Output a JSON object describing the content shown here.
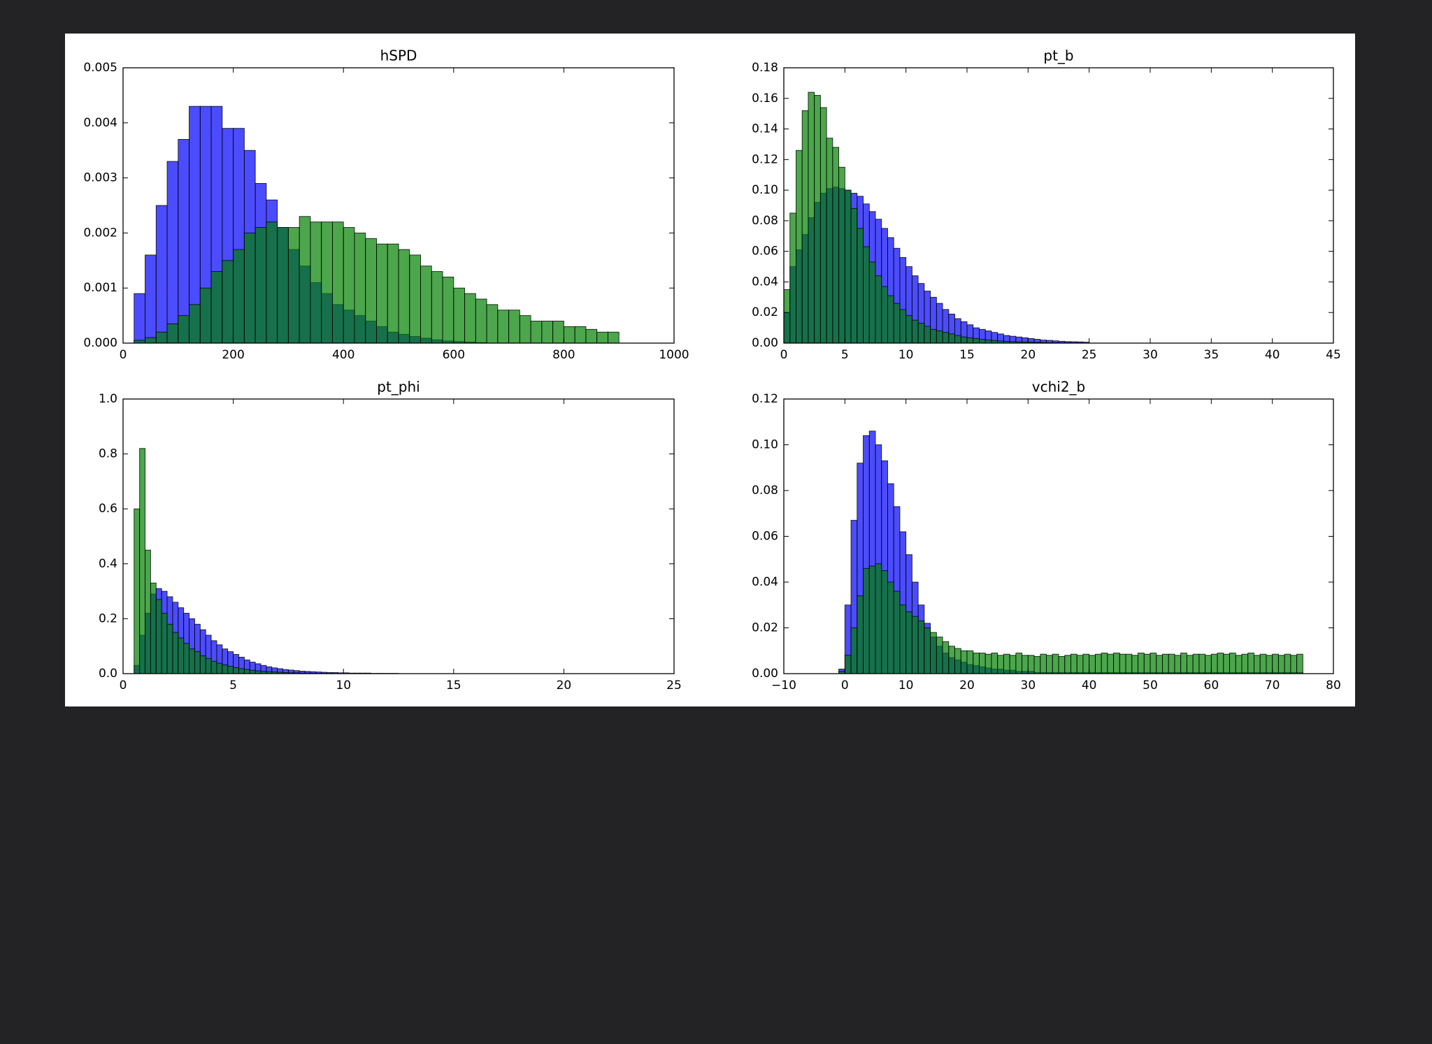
{
  "chart_data": [
    {
      "type": "histogram",
      "title": "hSPD",
      "bins": [
        20,
        40,
        60,
        80,
        100,
        120,
        140,
        160,
        180,
        200,
        220,
        240,
        260,
        280,
        300,
        320,
        340,
        360,
        380,
        400,
        420,
        440,
        460,
        480,
        500,
        520,
        540,
        560,
        580,
        600,
        620,
        640,
        660,
        680,
        700,
        720,
        740,
        760,
        780,
        800,
        820,
        840,
        860,
        880,
        900,
        920
      ],
      "series": [
        {
          "color": "#0000ff",
          "values": [
            0.0009,
            0.0016,
            0.0025,
            0.0033,
            0.0037,
            0.0043,
            0.0043,
            0.0043,
            0.0039,
            0.0039,
            0.0035,
            0.0029,
            0.0026,
            0.0021,
            0.0017,
            0.0014,
            0.0011,
            0.0009,
            0.0007,
            0.0006,
            0.0005,
            0.0004,
            0.0003,
            0.0002,
            0.00016,
            0.00012,
            9e-05,
            6e-05,
            4e-05,
            3e-05,
            2e-05,
            1e-05,
            0,
            0,
            0,
            0,
            0,
            0,
            0,
            0,
            0,
            0,
            0,
            0,
            0
          ]
        },
        {
          "color": "#008000",
          "values": [
            5e-05,
            0.0001,
            0.0002,
            0.00035,
            0.0005,
            0.0007,
            0.001,
            0.0013,
            0.0015,
            0.0017,
            0.002,
            0.0021,
            0.0022,
            0.0021,
            0.0021,
            0.0023,
            0.0022,
            0.0022,
            0.0022,
            0.0021,
            0.002,
            0.0019,
            0.0018,
            0.0018,
            0.0017,
            0.0016,
            0.0014,
            0.0013,
            0.0012,
            0.001,
            0.0009,
            0.0008,
            0.0007,
            0.0006,
            0.0006,
            0.0005,
            0.0004,
            0.0004,
            0.0004,
            0.0003,
            0.0003,
            0.00025,
            0.0002,
            0.0002,
            0
          ]
        }
      ],
      "alpha": 0.7,
      "xlim": [
        0,
        1000
      ],
      "xticks": [
        0,
        200,
        400,
        600,
        800,
        1000
      ],
      "ylim": [
        0,
        0.005
      ],
      "yticks": [
        {
          "value": 0,
          "label": "0.000"
        },
        0.001,
        0.002,
        0.003,
        0.004,
        0.005
      ]
    },
    {
      "type": "histogram",
      "title": "pt_b",
      "bins": [
        0,
        0.5,
        1,
        1.5,
        2,
        2.5,
        3,
        3.5,
        4,
        4.5,
        5,
        5.5,
        6,
        6.5,
        7,
        7.5,
        8,
        8.5,
        9,
        9.5,
        10,
        10.5,
        11,
        11.5,
        12,
        12.5,
        13,
        13.5,
        14,
        14.5,
        15,
        15.5,
        16,
        16.5,
        17,
        17.5,
        18,
        18.5,
        19,
        19.5,
        20,
        20.5,
        21,
        21.5,
        22,
        22.5,
        23,
        23.5,
        24,
        24.5,
        25
      ],
      "series": [
        {
          "color": "#0000ff",
          "values": [
            0.02,
            0.05,
            0.061,
            0.071,
            0.082,
            0.092,
            0.098,
            0.101,
            0.102,
            0.101,
            0.1,
            0.098,
            0.096,
            0.091,
            0.086,
            0.081,
            0.075,
            0.069,
            0.062,
            0.056,
            0.05,
            0.044,
            0.039,
            0.034,
            0.03,
            0.026,
            0.022,
            0.019,
            0.016,
            0.014,
            0.012,
            0.01,
            0.009,
            0.008,
            0.007,
            0.006,
            0.005,
            0.0045,
            0.004,
            0.0035,
            0.003,
            0.0025,
            0.002,
            0.0018,
            0.0015,
            0.0012,
            0.001,
            0.0009,
            0.0008,
            0.0006
          ]
        },
        {
          "color": "#008000",
          "values": [
            0.035,
            0.085,
            0.126,
            0.152,
            0.164,
            0.162,
            0.154,
            0.134,
            0.128,
            0.115,
            0.1,
            0.088,
            0.075,
            0.063,
            0.053,
            0.044,
            0.037,
            0.031,
            0.026,
            0.022,
            0.018,
            0.015,
            0.013,
            0.011,
            0.009,
            0.008,
            0.007,
            0.006,
            0.005,
            0.004,
            0.0035,
            0.003,
            0.0025,
            0.002,
            0.0017,
            0.0014,
            0.0012,
            0.001,
            0.0008,
            0.0007,
            0.0006,
            0.0005,
            0.0004,
            0.0003,
            0.0003,
            0.0002,
            0.0002,
            0.0001,
            0.0001,
            0.0001
          ]
        }
      ],
      "alpha": 0.7,
      "xlim": [
        0,
        45
      ],
      "xticks": [
        0,
        5,
        10,
        15,
        20,
        25,
        30,
        35,
        40,
        45
      ],
      "ylim": [
        0,
        0.18
      ],
      "yticks": [
        {
          "value": 0,
          "label": "0.00"
        },
        0.02,
        0.04,
        0.06,
        0.08,
        {
          "value": 0.1,
          "label": "0.10"
        },
        0.12,
        0.14,
        0.16,
        0.18
      ]
    },
    {
      "type": "histogram",
      "title": "pt_phi",
      "bins": [
        0.5,
        0.75,
        1,
        1.25,
        1.5,
        1.75,
        2,
        2.25,
        2.5,
        2.75,
        3,
        3.25,
        3.5,
        3.75,
        4,
        4.25,
        4.5,
        4.75,
        5,
        5.25,
        5.5,
        5.75,
        6,
        6.25,
        6.5,
        6.75,
        7,
        7.25,
        7.5,
        7.75,
        8,
        8.25,
        8.5,
        8.75,
        9,
        9.25,
        9.5,
        9.75,
        10,
        10.25,
        10.5,
        10.75,
        11,
        11.25,
        11.5,
        11.75,
        12,
        12.25,
        12.5
      ],
      "series": [
        {
          "color": "#0000ff",
          "values": [
            0.03,
            0.14,
            0.22,
            0.29,
            0.31,
            0.3,
            0.28,
            0.26,
            0.24,
            0.22,
            0.2,
            0.18,
            0.16,
            0.14,
            0.12,
            0.105,
            0.09,
            0.08,
            0.07,
            0.06,
            0.05,
            0.042,
            0.036,
            0.03,
            0.025,
            0.021,
            0.018,
            0.015,
            0.013,
            0.011,
            0.009,
            0.008,
            0.007,
            0.006,
            0.005,
            0.004,
            0.004,
            0.003,
            0.003,
            0.002,
            0.002,
            0.002,
            0.002,
            0.001,
            0.001,
            0.001,
            0.001,
            0.001
          ]
        },
        {
          "color": "#008000",
          "values": [
            0.6,
            0.82,
            0.45,
            0.33,
            0.27,
            0.22,
            0.18,
            0.15,
            0.13,
            0.11,
            0.09,
            0.08,
            0.065,
            0.055,
            0.045,
            0.038,
            0.032,
            0.027,
            0.022,
            0.018,
            0.015,
            0.012,
            0.01,
            0.008,
            0.007,
            0.006,
            0.005,
            0.004,
            0.003,
            0.003,
            0.002,
            0.002,
            0.0015,
            0.001,
            0.001,
            0.001,
            0,
            0,
            0,
            0,
            0,
            0,
            0,
            0,
            0,
            0,
            0,
            0
          ]
        }
      ],
      "alpha": 0.7,
      "xlim": [
        0,
        25
      ],
      "xticks": [
        0,
        5,
        10,
        15,
        20,
        25
      ],
      "ylim": [
        0,
        1
      ],
      "yticks": [
        {
          "value": 0,
          "label": "0.0"
        },
        0.2,
        0.4,
        0.6,
        0.8,
        {
          "value": 1,
          "label": "1.0"
        }
      ]
    },
    {
      "type": "histogram",
      "title": "vchi2_b",
      "bins": [
        -1,
        0,
        1,
        2,
        3,
        4,
        5,
        6,
        7,
        8,
        9,
        10,
        11,
        12,
        13,
        14,
        15,
        16,
        17,
        18,
        19,
        20,
        21,
        22,
        23,
        24,
        25,
        26,
        27,
        28,
        29,
        30,
        31,
        32,
        33,
        34,
        35,
        36,
        37,
        38,
        39,
        40,
        41,
        42,
        43,
        44,
        45,
        46,
        47,
        48,
        49,
        50,
        51,
        52,
        53,
        54,
        55,
        56,
        57,
        58,
        59,
        60,
        61,
        62,
        63,
        64,
        65,
        66,
        67,
        68,
        69,
        70,
        71,
        72,
        73,
        74,
        75
      ],
      "series": [
        {
          "color": "#0000ff",
          "values": [
            0.002,
            0.03,
            0.067,
            0.092,
            0.104,
            0.106,
            0.1,
            0.093,
            0.083,
            0.073,
            0.062,
            0.052,
            0.04,
            0.03,
            0.022,
            0.016,
            0.012,
            0.009,
            0.007,
            0.006,
            0.005,
            0.004,
            0.0035,
            0.003,
            0.0025,
            0.002,
            0.002,
            0.0015,
            0.0015,
            0.001,
            0.001,
            0.001,
            0.0005,
            0.0005,
            0.0005,
            0.0005,
            0.0005,
            0.0005,
            0.0005,
            0.0005,
            0.0005,
            0.0005,
            0.0005,
            0.0005,
            0.0005,
            0.0005,
            0.0005,
            0.0005,
            0.0005,
            0.0005,
            0.0005,
            0.0005,
            0.0005,
            0.0005,
            0.0005,
            0.0005,
            0.0005,
            0.0005,
            0.0005,
            0.0005,
            0.0005,
            0.0005,
            0.0005,
            0.0005,
            0.0005,
            0.0005,
            0.0005,
            0.0005,
            0.0005,
            0.0005,
            0.0005,
            0.0005,
            0.0005,
            0.0005,
            0.0005,
            0.0005
          ]
        },
        {
          "color": "#008000",
          "values": [
            0.001,
            0.008,
            0.02,
            0.034,
            0.046,
            0.047,
            0.048,
            0.045,
            0.04,
            0.036,
            0.03,
            0.027,
            0.025,
            0.023,
            0.02,
            0.018,
            0.016,
            0.014,
            0.012,
            0.011,
            0.01,
            0.01,
            0.009,
            0.009,
            0.0085,
            0.009,
            0.008,
            0.0085,
            0.008,
            0.009,
            0.008,
            0.008,
            0.0075,
            0.0085,
            0.008,
            0.0085,
            0.0075,
            0.008,
            0.0085,
            0.008,
            0.0085,
            0.008,
            0.0085,
            0.009,
            0.0085,
            0.009,
            0.0085,
            0.0085,
            0.008,
            0.009,
            0.0085,
            0.009,
            0.008,
            0.0085,
            0.0085,
            0.008,
            0.009,
            0.008,
            0.0085,
            0.0085,
            0.008,
            0.0085,
            0.009,
            0.0085,
            0.009,
            0.008,
            0.0085,
            0.009,
            0.008,
            0.0085,
            0.008,
            0.0085,
            0.008,
            0.0085,
            0.008,
            0.0085
          ]
        }
      ],
      "alpha": 0.7,
      "xlim": [
        -10,
        80
      ],
      "xticks": [
        {
          "value": -10,
          "label": "−10"
        },
        0,
        10,
        20,
        30,
        40,
        50,
        60,
        70,
        80
      ],
      "ylim": [
        0,
        0.12
      ],
      "yticks": [
        {
          "value": 0,
          "label": "0.00"
        },
        0.02,
        0.04,
        0.06,
        0.08,
        {
          "value": 0.1,
          "label": "0.10"
        },
        0.12
      ]
    }
  ]
}
